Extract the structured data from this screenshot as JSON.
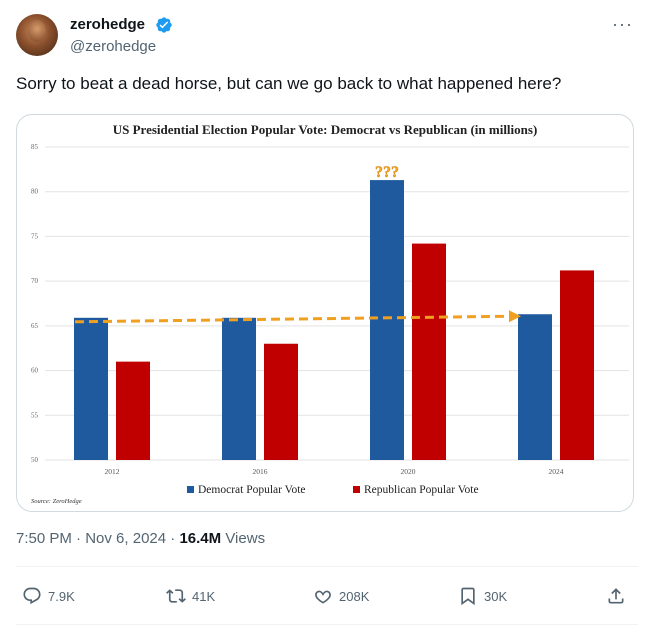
{
  "user": {
    "name": "zerohedge",
    "handle": "@zerohedge"
  },
  "tweet": {
    "text": "Sorry to beat a dead horse, but can we go back to what happened here?",
    "time": "7:50 PM",
    "date": "Nov 6, 2024",
    "views_count": "16.4M",
    "views_label": "Views"
  },
  "actions": {
    "replies": "7.9K",
    "reposts": "41K",
    "likes": "208K",
    "bookmarks": "30K"
  },
  "chart_data": {
    "type": "bar",
    "title": "US Presidential Election Popular Vote: Democrat vs Republican (in millions)",
    "categories": [
      "2012",
      "2016",
      "2020",
      "2024"
    ],
    "series": [
      {
        "name": "Democrat Popular Vote",
        "color": "#1f5a9e",
        "values": [
          65.9,
          65.9,
          81.3,
          66.3
        ]
      },
      {
        "name": "Republican Popular Vote",
        "color": "#c00000",
        "values": [
          61.0,
          63.0,
          74.2,
          71.2
        ]
      }
    ],
    "ylim": [
      50,
      85
    ],
    "yticks": [
      "50",
      "55",
      "60",
      "65",
      "70",
      "75",
      "80",
      "85"
    ],
    "grid": true,
    "legend": "bottom",
    "annotation": "???",
    "annotation_color": "#f5a623",
    "trend_line_color": "#f0a020",
    "source": "Source: ZeroHedge"
  }
}
